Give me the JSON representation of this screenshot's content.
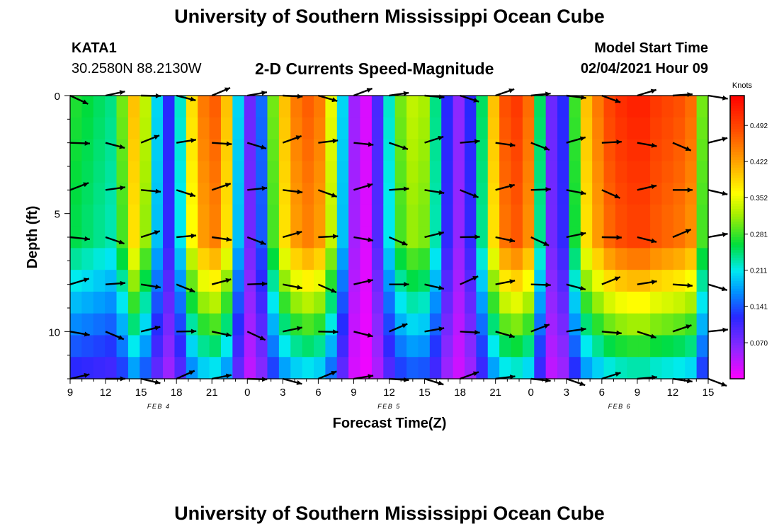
{
  "header": {
    "title": "University of Southern Mississippi Ocean Cube",
    "station_id": "KATA1",
    "station_coords": "30.2580N 88.2130W",
    "model_start_label": "Model Start Time",
    "model_start_value": "02/04/2021 Hour 09"
  },
  "footer": {
    "title": "University of Southern Mississippi Ocean Cube"
  },
  "chart_data": {
    "type": "heatmap",
    "title": "2-D Currents Speed-Magnitude",
    "xlabel": "Forecast Time(Z)",
    "ylabel": "Depth (ft)",
    "colorbar_label": "Knots",
    "colorbar_ticks": [
      "0.492",
      "0.422",
      "0.352",
      "0.281",
      "0.211",
      "0.141",
      "0.070"
    ],
    "colorbar_tick_values": [
      0.492,
      0.422,
      0.352,
      0.281,
      0.211,
      0.141,
      0.07
    ],
    "colorbar_range": [
      0.0,
      0.55
    ],
    "x_tick_labels": [
      "9",
      "12",
      "15",
      "18",
      "21",
      "0",
      "3",
      "6",
      "9",
      "12",
      "15",
      "18",
      "21",
      "0",
      "3",
      "6",
      "9",
      "12",
      "15"
    ],
    "x_tick_hours": [
      0,
      3,
      6,
      9,
      12,
      15,
      18,
      21,
      24,
      27,
      30,
      33,
      36,
      39,
      42,
      45,
      48,
      51,
      54
    ],
    "date_labels": [
      {
        "text": "FEB 4",
        "hour": 7.5
      },
      {
        "text": "FEB 5",
        "hour": 27
      },
      {
        "text": "FEB 6",
        "hour": 46.5
      }
    ],
    "xlim": [
      0,
      54
    ],
    "y_tick_labels": [
      "0",
      "5",
      "10"
    ],
    "y_tick_values": [
      0,
      5,
      10
    ],
    "ylim": [
      0,
      12
    ],
    "y_inverted": true,
    "depth_levels_ft": [
      0,
      1,
      2,
      3,
      4,
      5,
      6,
      7,
      8,
      9,
      10,
      11,
      12
    ],
    "hours": [
      0,
      1,
      2,
      3,
      4,
      5,
      6,
      7,
      8,
      9,
      10,
      11,
      12,
      13,
      14,
      15,
      16,
      17,
      18,
      19,
      20,
      21,
      22,
      23,
      24,
      25,
      26,
      27,
      28,
      29,
      30,
      31,
      32,
      33,
      34,
      35,
      36,
      37,
      38,
      39,
      40,
      41,
      42,
      43,
      44,
      45,
      46,
      47,
      48,
      49,
      50,
      51,
      52,
      53,
      54
    ],
    "surface_speed_knots": [
      0.27,
      0.26,
      0.25,
      0.24,
      0.3,
      0.4,
      0.33,
      0.2,
      0.12,
      0.22,
      0.38,
      0.45,
      0.47,
      0.4,
      0.2,
      0.08,
      0.15,
      0.3,
      0.4,
      0.45,
      0.47,
      0.45,
      0.35,
      0.2,
      0.05,
      0.02,
      0.1,
      0.22,
      0.3,
      0.33,
      0.32,
      0.24,
      0.12,
      0.06,
      0.12,
      0.25,
      0.4,
      0.48,
      0.5,
      0.46,
      0.25,
      0.08,
      0.12,
      0.28,
      0.4,
      0.45,
      0.49,
      0.51,
      0.52,
      0.52,
      0.5,
      0.49,
      0.48,
      0.46,
      0.3
    ],
    "vector_hours": [
      0,
      3,
      6,
      9,
      12,
      15,
      18,
      21,
      24,
      27,
      30,
      33,
      36,
      39,
      42,
      45,
      48,
      51,
      54
    ],
    "vector_depths_ft": [
      0,
      2,
      4,
      6,
      8,
      10,
      12
    ]
  }
}
